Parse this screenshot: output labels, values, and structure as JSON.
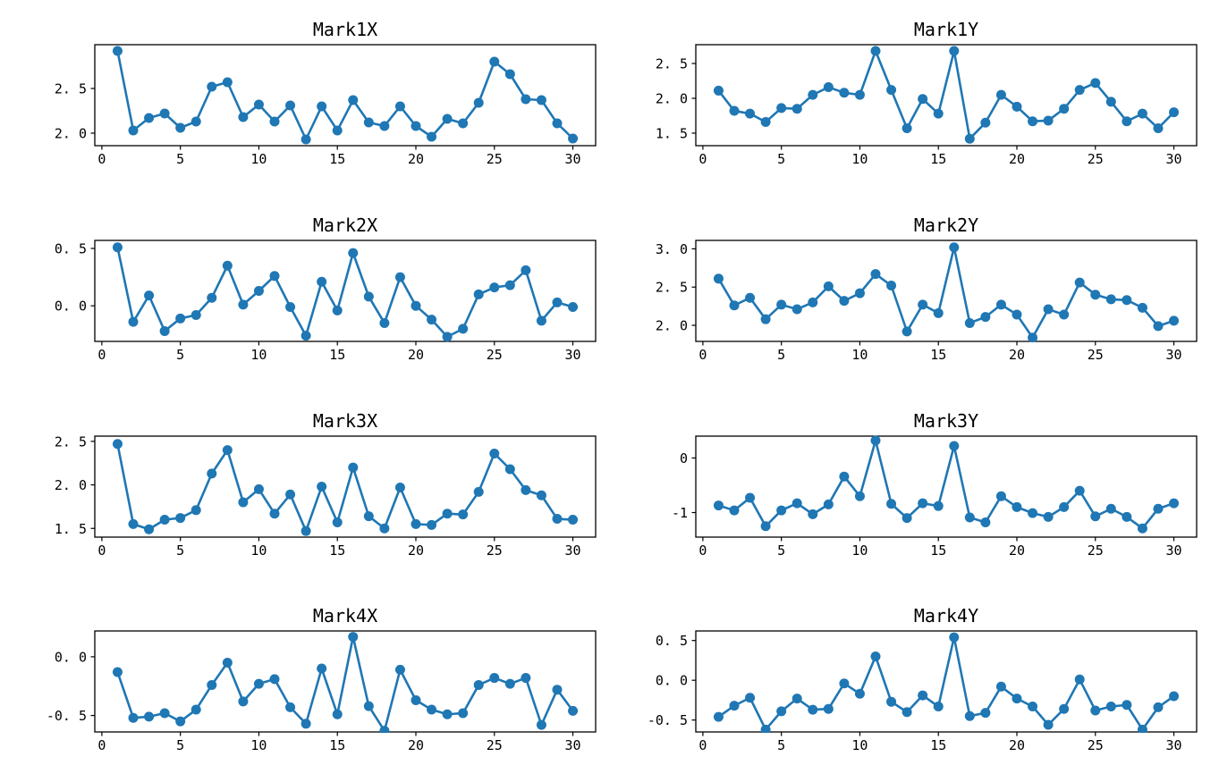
{
  "figure": {
    "background_color": "#ffffff",
    "line_color": "#1f77b4",
    "marker_color": "#1f77b4",
    "axis_color": "#000000",
    "layout": {
      "rows": 4,
      "cols": 2
    }
  },
  "chart_data": [
    {
      "type": "line",
      "title": "Mark1X",
      "xlabel": "",
      "ylabel": "",
      "grid": false,
      "legend_position": null,
      "marker": "o",
      "x": [
        1,
        2,
        3,
        4,
        5,
        6,
        7,
        8,
        9,
        10,
        11,
        12,
        13,
        14,
        15,
        16,
        17,
        18,
        19,
        20,
        21,
        22,
        23,
        24,
        25,
        26,
        27,
        28,
        29,
        30
      ],
      "values": [
        2.92,
        2.03,
        2.17,
        2.22,
        2.06,
        2.13,
        2.52,
        2.57,
        2.18,
        2.32,
        2.13,
        2.31,
        1.93,
        2.3,
        2.03,
        2.37,
        2.12,
        2.08,
        2.3,
        2.08,
        1.96,
        2.16,
        2.11,
        2.34,
        2.8,
        2.66,
        2.38,
        2.37,
        2.11,
        1.94
      ],
      "xlim": [
        -0.45,
        31.45
      ],
      "ylim": [
        1.86,
        2.99
      ],
      "xticks": {
        "values": [
          0,
          5,
          10,
          15,
          20,
          25,
          30
        ],
        "labels": [
          "0",
          "5",
          "10",
          "15",
          "20",
          "25",
          "30"
        ]
      },
      "yticks": {
        "values": [
          2.0,
          2.5
        ],
        "labels": [
          "2. 0",
          "2. 5"
        ]
      }
    },
    {
      "type": "line",
      "title": "Mark1Y",
      "xlabel": "",
      "ylabel": "",
      "grid": false,
      "legend_position": null,
      "marker": "o",
      "x": [
        1,
        2,
        3,
        4,
        5,
        6,
        7,
        8,
        9,
        10,
        11,
        12,
        13,
        14,
        15,
        16,
        17,
        18,
        19,
        20,
        21,
        22,
        23,
        24,
        25,
        26,
        27,
        28,
        29,
        30
      ],
      "values": [
        2.11,
        1.82,
        1.78,
        1.66,
        1.86,
        1.85,
        2.05,
        2.16,
        2.08,
        2.05,
        2.68,
        2.12,
        1.57,
        1.99,
        1.78,
        2.68,
        1.42,
        1.65,
        2.05,
        1.88,
        1.67,
        1.68,
        1.85,
        2.12,
        2.22,
        1.95,
        1.67,
        1.78,
        1.57,
        1.8
      ],
      "xlim": [
        -0.45,
        31.45
      ],
      "ylim": [
        1.32,
        2.77
      ],
      "xticks": {
        "values": [
          0,
          5,
          10,
          15,
          20,
          25,
          30
        ],
        "labels": [
          "0",
          "5",
          "10",
          "15",
          "20",
          "25",
          "30"
        ]
      },
      "yticks": {
        "values": [
          1.5,
          2.0,
          2.5
        ],
        "labels": [
          "1. 5",
          "2. 0",
          "2. 5"
        ]
      }
    },
    {
      "type": "line",
      "title": "Mark2X",
      "xlabel": "",
      "ylabel": "",
      "grid": false,
      "legend_position": null,
      "marker": "o",
      "x": [
        1,
        2,
        3,
        4,
        5,
        6,
        7,
        8,
        9,
        10,
        11,
        12,
        13,
        14,
        15,
        16,
        17,
        18,
        19,
        20,
        21,
        22,
        23,
        24,
        25,
        26,
        27,
        28,
        29,
        30
      ],
      "values": [
        0.51,
        -0.14,
        0.09,
        -0.22,
        -0.11,
        -0.08,
        0.07,
        0.35,
        0.01,
        0.13,
        0.26,
        -0.01,
        -0.26,
        0.21,
        -0.04,
        0.46,
        0.08,
        -0.15,
        0.25,
        0.0,
        -0.12,
        -0.27,
        -0.2,
        0.1,
        0.16,
        0.18,
        0.31,
        -0.13,
        0.03,
        -0.01
      ],
      "xlim": [
        -0.45,
        31.45
      ],
      "ylim": [
        -0.31,
        0.57
      ],
      "xticks": {
        "values": [
          0,
          5,
          10,
          15,
          20,
          25,
          30
        ],
        "labels": [
          "0",
          "5",
          "10",
          "15",
          "20",
          "25",
          "30"
        ]
      },
      "yticks": {
        "values": [
          0.0,
          0.5
        ],
        "labels": [
          "0. 0",
          "0. 5"
        ]
      }
    },
    {
      "type": "line",
      "title": "Mark2Y",
      "xlabel": "",
      "ylabel": "",
      "grid": false,
      "legend_position": null,
      "marker": "o",
      "x": [
        1,
        2,
        3,
        4,
        5,
        6,
        7,
        8,
        9,
        10,
        11,
        12,
        13,
        14,
        15,
        16,
        17,
        18,
        19,
        20,
        21,
        22,
        23,
        24,
        25,
        26,
        27,
        28,
        29,
        30
      ],
      "values": [
        2.61,
        2.26,
        2.36,
        2.08,
        2.27,
        2.21,
        2.3,
        2.51,
        2.32,
        2.42,
        2.67,
        2.52,
        1.92,
        2.27,
        2.16,
        3.02,
        2.03,
        2.11,
        2.27,
        2.14,
        1.84,
        2.21,
        2.14,
        2.56,
        2.4,
        2.34,
        2.33,
        2.23,
        1.99,
        2.06
      ],
      "xlim": [
        -0.45,
        31.45
      ],
      "ylim": [
        1.79,
        3.11
      ],
      "xticks": {
        "values": [
          0,
          5,
          10,
          15,
          20,
          25,
          30
        ],
        "labels": [
          "0",
          "5",
          "10",
          "15",
          "20",
          "25",
          "30"
        ]
      },
      "yticks": {
        "values": [
          2.0,
          2.5,
          3.0
        ],
        "labels": [
          "2. 0",
          "2. 5",
          "3. 0"
        ]
      }
    },
    {
      "type": "line",
      "title": "Mark3X",
      "xlabel": "",
      "ylabel": "",
      "grid": false,
      "legend_position": null,
      "marker": "o",
      "x": [
        1,
        2,
        3,
        4,
        5,
        6,
        7,
        8,
        9,
        10,
        11,
        12,
        13,
        14,
        15,
        16,
        17,
        18,
        19,
        20,
        21,
        22,
        23,
        24,
        25,
        26,
        27,
        28,
        29,
        30
      ],
      "values": [
        2.47,
        1.55,
        1.49,
        1.6,
        1.62,
        1.71,
        2.13,
        2.4,
        1.8,
        1.95,
        1.67,
        1.89,
        1.47,
        1.98,
        1.57,
        2.2,
        1.64,
        1.5,
        1.97,
        1.55,
        1.54,
        1.67,
        1.66,
        1.92,
        2.36,
        2.18,
        1.94,
        1.88,
        1.61,
        1.6
      ],
      "xlim": [
        -0.45,
        31.45
      ],
      "ylim": [
        1.4,
        2.56
      ],
      "xticks": {
        "values": [
          0,
          5,
          10,
          15,
          20,
          25,
          30
        ],
        "labels": [
          "0",
          "5",
          "10",
          "15",
          "20",
          "25",
          "30"
        ]
      },
      "yticks": {
        "values": [
          1.5,
          2.0,
          2.5
        ],
        "labels": [
          "1. 5",
          "2. 0",
          "2. 5"
        ]
      }
    },
    {
      "type": "line",
      "title": "Mark3Y",
      "xlabel": "",
      "ylabel": "",
      "grid": false,
      "legend_position": null,
      "marker": "o",
      "x": [
        1,
        2,
        3,
        4,
        5,
        6,
        7,
        8,
        9,
        10,
        11,
        12,
        13,
        14,
        15,
        16,
        17,
        18,
        19,
        20,
        21,
        22,
        23,
        24,
        25,
        26,
        27,
        28,
        29,
        30
      ],
      "values": [
        -0.87,
        -0.96,
        -0.73,
        -1.25,
        -0.96,
        -0.83,
        -1.03,
        -0.85,
        -0.34,
        -0.7,
        0.32,
        -0.84,
        -1.1,
        -0.83,
        -0.88,
        0.22,
        -1.09,
        -1.18,
        -0.7,
        -0.9,
        -1.01,
        -1.08,
        -0.9,
        -0.6,
        -1.07,
        -0.93,
        -1.08,
        -1.29,
        -0.93,
        -0.83
      ],
      "xlim": [
        -0.45,
        31.45
      ],
      "ylim": [
        -1.45,
        0.4
      ],
      "xticks": {
        "values": [
          0,
          5,
          10,
          15,
          20,
          25,
          30
        ],
        "labels": [
          "0",
          "5",
          "10",
          "15",
          "20",
          "25",
          "30"
        ]
      },
      "yticks": {
        "values": [
          -1,
          0
        ],
        "labels": [
          "-1",
          "0"
        ]
      }
    },
    {
      "type": "line",
      "title": "Mark4X",
      "xlabel": "",
      "ylabel": "",
      "grid": false,
      "legend_position": null,
      "marker": "o",
      "x": [
        1,
        2,
        3,
        4,
        5,
        6,
        7,
        8,
        9,
        10,
        11,
        12,
        13,
        14,
        15,
        16,
        17,
        18,
        19,
        20,
        21,
        22,
        23,
        24,
        25,
        26,
        27,
        28,
        29,
        30
      ],
      "values": [
        -0.13,
        -0.52,
        -0.51,
        -0.48,
        -0.55,
        -0.45,
        -0.24,
        -0.05,
        -0.38,
        -0.23,
        -0.19,
        -0.43,
        -0.57,
        -0.1,
        -0.49,
        0.17,
        -0.42,
        -0.63,
        -0.11,
        -0.37,
        -0.45,
        -0.49,
        -0.48,
        -0.24,
        -0.18,
        -0.23,
        -0.18,
        -0.58,
        -0.28,
        -0.46
      ],
      "xlim": [
        -0.45,
        31.45
      ],
      "ylim": [
        -0.64,
        0.22
      ],
      "xticks": {
        "values": [
          0,
          5,
          10,
          15,
          20,
          25,
          30
        ],
        "labels": [
          "0",
          "5",
          "10",
          "15",
          "20",
          "25",
          "30"
        ]
      },
      "yticks": {
        "values": [
          -0.5,
          0.0
        ],
        "labels": [
          "-0. 5",
          "0. 0"
        ]
      }
    },
    {
      "type": "line",
      "title": "Mark4Y",
      "xlabel": "",
      "ylabel": "",
      "grid": false,
      "legend_position": null,
      "marker": "o",
      "x": [
        1,
        2,
        3,
        4,
        5,
        6,
        7,
        8,
        9,
        10,
        11,
        12,
        13,
        14,
        15,
        16,
        17,
        18,
        19,
        20,
        21,
        22,
        23,
        24,
        25,
        26,
        27,
        28,
        29,
        30
      ],
      "values": [
        -0.46,
        -0.32,
        -0.22,
        -0.62,
        -0.39,
        -0.23,
        -0.37,
        -0.36,
        -0.04,
        -0.17,
        0.3,
        -0.27,
        -0.4,
        -0.19,
        -0.33,
        0.54,
        -0.45,
        -0.41,
        -0.08,
        -0.23,
        -0.33,
        -0.56,
        -0.36,
        0.01,
        -0.38,
        -0.33,
        -0.31,
        -0.62,
        -0.34,
        -0.2
      ],
      "xlim": [
        -0.45,
        31.45
      ],
      "ylim": [
        -0.65,
        0.62
      ],
      "xticks": {
        "values": [
          0,
          5,
          10,
          15,
          20,
          25,
          30
        ],
        "labels": [
          "0",
          "5",
          "10",
          "15",
          "20",
          "25",
          "30"
        ]
      },
      "yticks": {
        "values": [
          -0.5,
          0.0,
          0.5
        ],
        "labels": [
          "-0. 5",
          "0. 0",
          "0. 5"
        ]
      }
    }
  ]
}
